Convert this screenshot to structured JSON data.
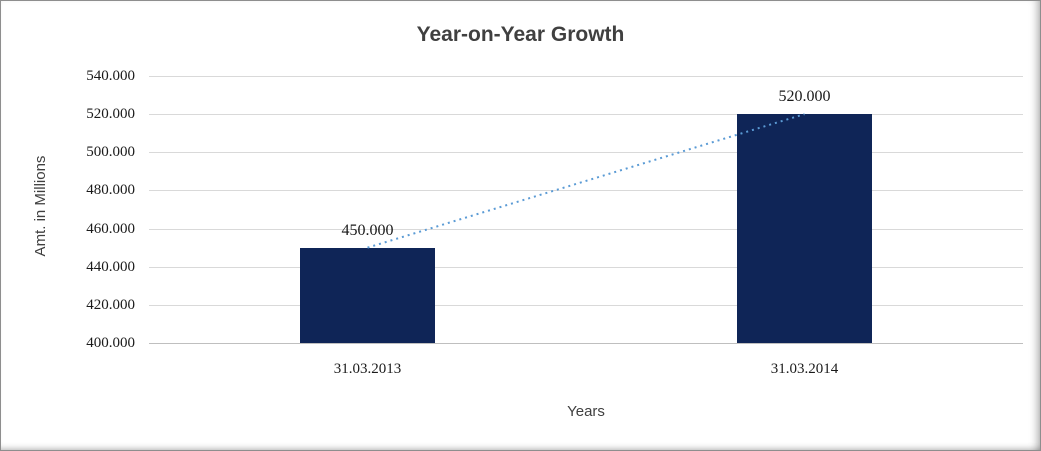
{
  "chart_data": {
    "type": "bar",
    "title": "Year-on-Year Growth",
    "xlabel": "Years",
    "ylabel": "Amt. in Millions",
    "categories": [
      "31.03.2013",
      "31.03.2014"
    ],
    "values": [
      450000,
      520000
    ],
    "data_labels": [
      "450.000",
      "520.000"
    ],
    "ylim": [
      400000,
      540000
    ],
    "ytick_step": 20000,
    "ytick_labels": [
      "400.000",
      "420.000",
      "440.000",
      "460.000",
      "480.000",
      "500.000",
      "520.000",
      "540.000"
    ],
    "grid": true,
    "legend": "none",
    "bar_color": "#0f2557",
    "trendline_color": "#5b9bd5",
    "trendline_style": "dotted",
    "gridline_color": "#d9d9d9",
    "axis_color": "#bfbfbf"
  }
}
